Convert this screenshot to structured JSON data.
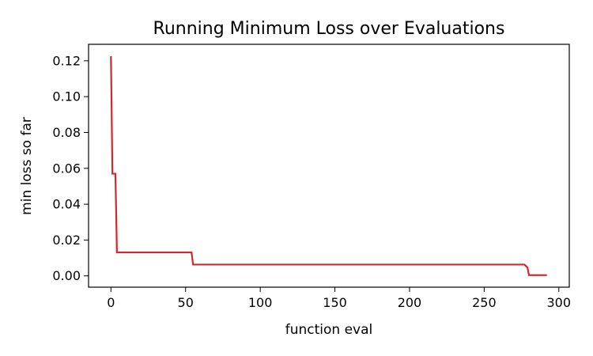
{
  "chart_data": {
    "type": "line",
    "title": "Running Minimum Loss over Evaluations",
    "xlabel": "function eval",
    "ylabel": "min loss so far",
    "xlim": [
      -15,
      307
    ],
    "ylim": [
      -0.0063,
      0.1292
    ],
    "xticks": [
      0,
      50,
      100,
      150,
      200,
      250,
      300
    ],
    "yticks": [
      0.0,
      0.02,
      0.04,
      0.06,
      0.08,
      0.1,
      0.12
    ],
    "xtick_labels": [
      "0",
      "50",
      "100",
      "150",
      "200",
      "250",
      "300"
    ],
    "ytick_labels": [
      "0.00",
      "0.02",
      "0.04",
      "0.06",
      "0.08",
      "0.10",
      "0.12"
    ],
    "grid": false,
    "series": [
      {
        "color": "#d62728",
        "x": [
          0,
          1,
          1,
          3,
          3,
          4,
          4,
          54,
          54,
          55,
          55,
          277,
          277,
          279,
          279,
          280,
          280,
          292
        ],
        "y": [
          0.1226,
          0.057,
          0.057,
          0.057,
          0.057,
          0.0131,
          0.0131,
          0.0131,
          0.0131,
          0.0063,
          0.0063,
          0.0063,
          0.0063,
          0.0046,
          0.0046,
          0.0004,
          0.0004,
          0.0004
        ]
      }
    ]
  }
}
